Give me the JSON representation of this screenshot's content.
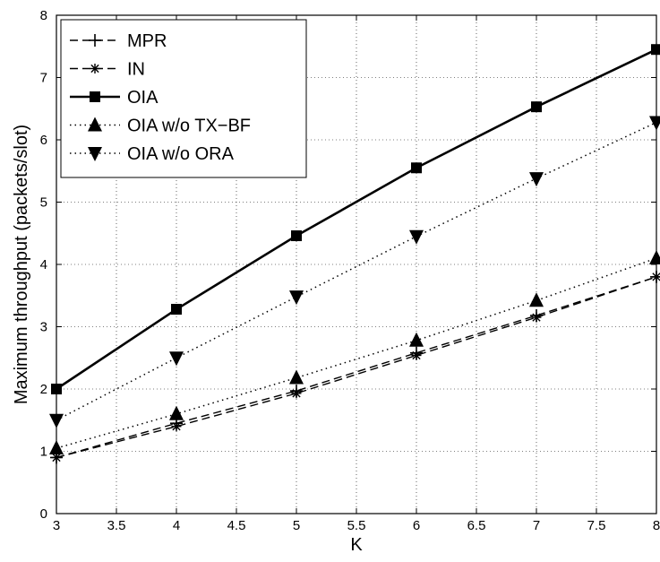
{
  "chart_data": {
    "type": "line",
    "xlabel": "K",
    "ylabel": "Maximum throughput (packets/slot)",
    "xlim": [
      3,
      8
    ],
    "ylim": [
      0,
      8
    ],
    "xticks": [
      "3",
      "3.5",
      "4",
      "4.5",
      "5",
      "5.5",
      "6",
      "6.5",
      "7",
      "7.5",
      "8"
    ],
    "yticks": [
      "0",
      "1",
      "2",
      "3",
      "4",
      "5",
      "6",
      "7",
      "8"
    ],
    "x": [
      3,
      4,
      5,
      6,
      7,
      8
    ],
    "grid": true,
    "legend_position": "top-left",
    "series": [
      {
        "name": "MPR",
        "values": [
          0.9,
          1.45,
          1.97,
          2.58,
          3.18,
          3.8
        ],
        "line_style": "dashed",
        "marker": "plus",
        "color": "#000000"
      },
      {
        "name": "IN",
        "values": [
          0.9,
          1.4,
          1.93,
          2.54,
          3.15,
          3.8
        ],
        "line_style": "dashed",
        "marker": "asterisk",
        "color": "#000000"
      },
      {
        "name": "OIA",
        "values": [
          2.0,
          3.28,
          4.46,
          5.55,
          6.53,
          7.45
        ],
        "line_style": "solid",
        "marker": "square",
        "color": "#000000"
      },
      {
        "name": "OIA w/o TX−BF",
        "values": [
          1.05,
          1.6,
          2.18,
          2.78,
          3.42,
          4.1
        ],
        "line_style": "dotted",
        "marker": "triangle-up",
        "color": "#000000"
      },
      {
        "name": "OIA w/o ORA",
        "values": [
          1.5,
          2.5,
          3.48,
          4.45,
          5.38,
          6.28
        ],
        "line_style": "dotted",
        "marker": "triangle-down",
        "color": "#000000"
      }
    ]
  }
}
